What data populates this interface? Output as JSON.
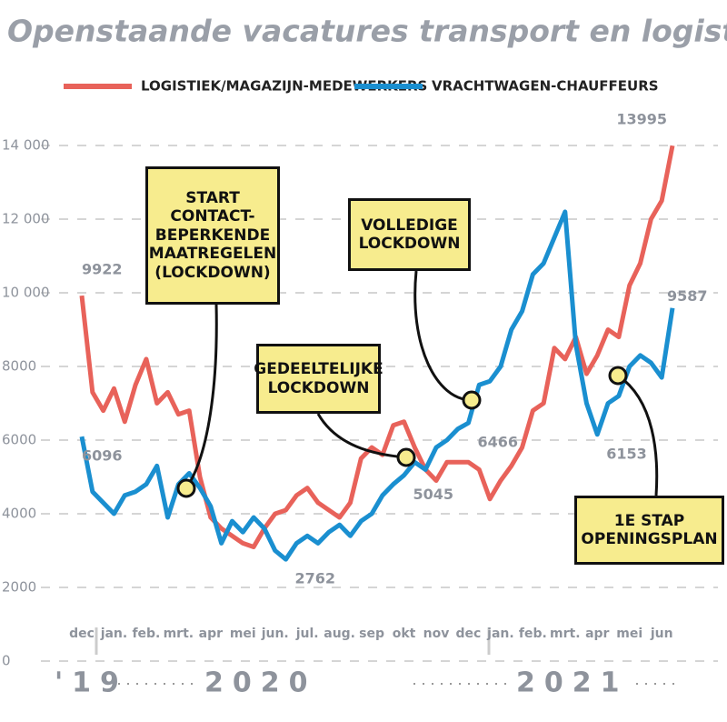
{
  "chart_data": {
    "type": "line",
    "title": "Openstaande vacatures transport en logistiek",
    "categories": [
      "dec",
      null,
      null,
      "jan.",
      null,
      null,
      "feb.",
      null,
      null,
      "mrt.",
      null,
      null,
      "apr",
      null,
      null,
      "mei",
      null,
      null,
      "jun.",
      null,
      null,
      "jul.",
      null,
      null,
      "aug.",
      null,
      null,
      "sep",
      null,
      null,
      "okt",
      null,
      null,
      "nov",
      null,
      null,
      "dec",
      null,
      null,
      "jan.",
      null,
      null,
      "feb.",
      null,
      null,
      "mrt.",
      null,
      null,
      "apr",
      null,
      null,
      "mei",
      null,
      null,
      "jun",
      null
    ],
    "series": [
      {
        "name": "LOGISTIEK/MAGAZIJN-MEDEWERKERS",
        "color": "#e8625a",
        "values": [
          9922,
          7300,
          6800,
          7400,
          6500,
          7500,
          8200,
          7000,
          7300,
          6700,
          6800,
          5000,
          3900,
          3600,
          3400,
          3200,
          3100,
          3600,
          4000,
          4100,
          4500,
          4700,
          4300,
          4100,
          3900,
          4300,
          5500,
          5800,
          5600,
          6400,
          6500,
          5800,
          5200,
          4900,
          5400,
          5400,
          5400,
          5200,
          4400,
          4900,
          5300,
          5800,
          6800,
          7000,
          8500,
          8200,
          8800,
          7800,
          8300,
          9000,
          8800,
          10200,
          10800,
          12000,
          12500,
          13995
        ],
        "value_labels": [
          "9922",
          null,
          null,
          null,
          null,
          null,
          null,
          null,
          null,
          null,
          null,
          null,
          null,
          null,
          null,
          null,
          null,
          null,
          null,
          null,
          null,
          null,
          null,
          null,
          null,
          null,
          null,
          null,
          null,
          null,
          null,
          null,
          null,
          null,
          null,
          null,
          null,
          null,
          null,
          null,
          null,
          null,
          null,
          null,
          null,
          null,
          null,
          null,
          null,
          null,
          null,
          null,
          null,
          null,
          null,
          "13995"
        ]
      },
      {
        "name": "VRACHTWAGEN-CHAUFFEURS",
        "color": "#1a8fd0",
        "values": [
          6096,
          4600,
          4300,
          4000,
          4500,
          4600,
          4800,
          5300,
          3900,
          4800,
          5100,
          4700,
          4200,
          3200,
          3800,
          3500,
          3900,
          3600,
          3000,
          2762,
          3200,
          3400,
          3200,
          3500,
          3700,
          3400,
          3800,
          4000,
          4500,
          4800,
          5045,
          5400,
          5200,
          5800,
          6000,
          6300,
          6466,
          7500,
          7600,
          8000,
          9000,
          9500,
          10500,
          10800,
          11500,
          12200,
          8600,
          7000,
          6153,
          7000,
          7200,
          8000,
          8300,
          8100,
          7700,
          9587
        ],
        "value_labels": [
          "6096",
          null,
          null,
          null,
          null,
          null,
          null,
          null,
          null,
          null,
          null,
          null,
          null,
          null,
          null,
          null,
          null,
          null,
          null,
          "2762",
          null,
          null,
          null,
          null,
          null,
          null,
          null,
          null,
          null,
          null,
          "5045",
          null,
          null,
          null,
          null,
          null,
          "6466",
          null,
          null,
          null,
          null,
          null,
          null,
          null,
          null,
          null,
          null,
          null,
          "6153",
          null,
          null,
          null,
          null,
          null,
          null,
          "9587"
        ]
      }
    ],
    "ylim": [
      0,
      14000
    ],
    "yticks": [
      0,
      2000,
      4000,
      6000,
      8000,
      {
        "value": 10000,
        "label": "10 000"
      },
      {
        "value": 12000,
        "label": "12 000"
      },
      {
        "value": 14000,
        "label": "14 000"
      }
    ],
    "grid": true,
    "years": [
      "'19",
      "2020",
      "2021"
    ],
    "annotations": [
      "Start contact-beperkende maatregelen (lockdown)",
      "Gedeeltelijke lockdown",
      "Volledige lockdown",
      "1e stap openingsplan"
    ]
  }
}
